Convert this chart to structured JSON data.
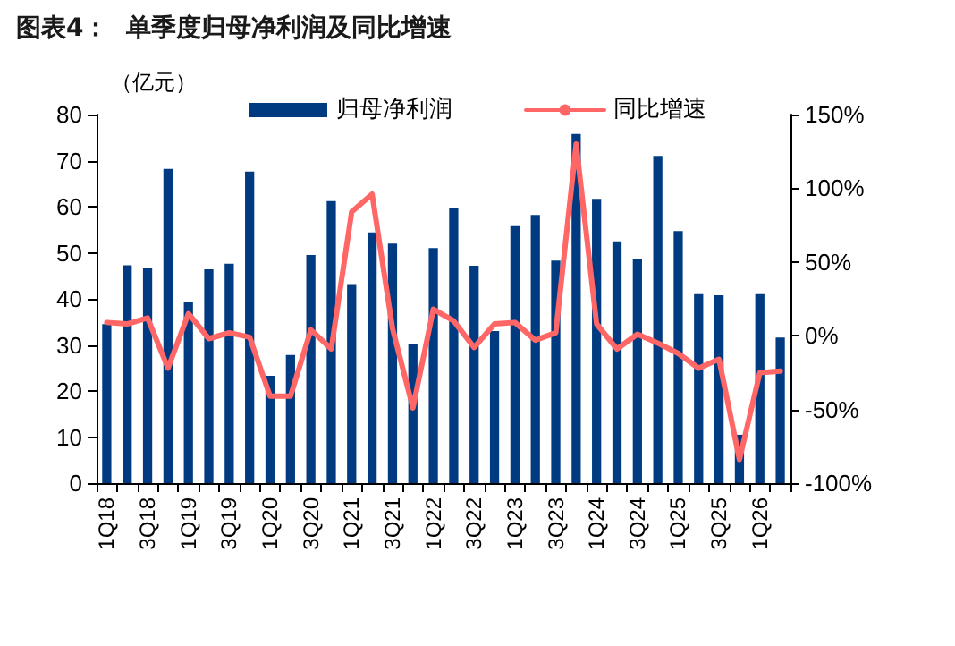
{
  "chart_data": {
    "type": "bar",
    "title": "图表4：  单季度归母净利润及同比增速",
    "ylabel": "（亿元）",
    "categories": [
      "1Q18",
      null,
      "3Q18",
      null,
      "1Q19",
      null,
      "3Q19",
      null,
      "1Q20",
      null,
      "3Q20",
      null,
      "1Q21",
      null,
      "3Q21",
      null,
      "1Q22",
      null,
      "3Q22",
      null,
      "1Q23",
      null,
      "3Q23",
      null,
      "1Q24",
      null,
      "3Q24",
      null,
      "1Q25",
      null,
      "3Q25",
      null,
      "1Q26",
      null
    ],
    "series": [
      {
        "name": "归母净利润",
        "color": "#003a80",
        "values": [
          34.5,
          47.3,
          46.8,
          68.2,
          39.2,
          46.4,
          47.6,
          67.6,
          23.3,
          27.8,
          49.5,
          61.2,
          43.2,
          54.4,
          52,
          30.3,
          51,
          59.7,
          47.2,
          33,
          55.8,
          58.2,
          48.3,
          75.8,
          61.7,
          52.5,
          48.7,
          71,
          54.7,
          41,
          40.8,
          10.5,
          41,
          31.6
        ]
      },
      {
        "name": "同比增速",
        "type": "line",
        "axis": "y2",
        "color": "#ff6666",
        "values": [
          9,
          8,
          12,
          -22,
          15,
          -2,
          2,
          -1,
          -41,
          -41,
          4,
          -9,
          84,
          96,
          5,
          -49,
          18,
          10,
          -8,
          8,
          9,
          -3,
          2,
          130,
          8,
          -9,
          1,
          -5,
          -12,
          -22,
          -16,
          -84,
          -25,
          -24
        ]
      }
    ],
    "ylim": [
      0,
      80
    ],
    "yticks": [
      0,
      10,
      20,
      30,
      40,
      50,
      60,
      70,
      80
    ],
    "y2lim": [
      -100,
      150
    ],
    "y2ticks": [
      {
        "value": -100,
        "label": "-100%"
      },
      {
        "value": -50,
        "label": "-50%"
      },
      {
        "value": 0,
        "label": "0%"
      },
      {
        "value": 50,
        "label": "50%"
      },
      {
        "value": 100,
        "label": "100%"
      },
      {
        "value": 150,
        "label": "150%"
      }
    ],
    "legend": "top",
    "grid": false,
    "marker": "none",
    "line_style": "solid"
  }
}
